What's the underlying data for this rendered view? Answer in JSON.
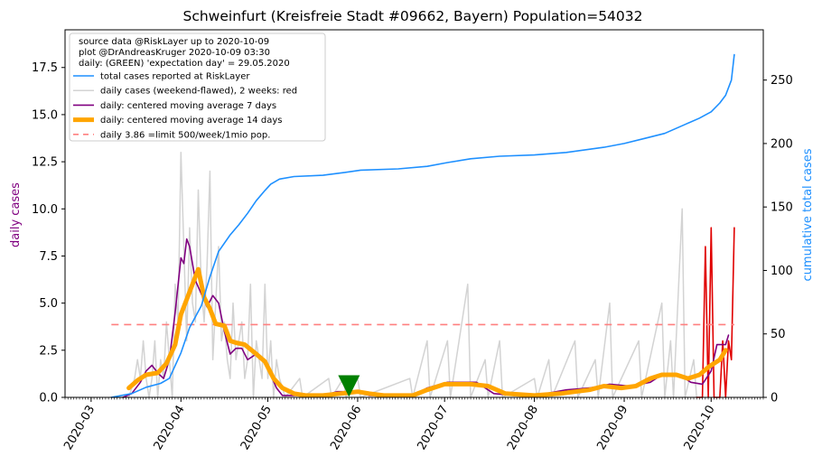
{
  "chart_data": {
    "type": "line",
    "title": "Schweinfurt (Kreisfreie Stadt #09662, Bayern) Population=54032",
    "ylabel_left": "daily cases",
    "ylabel_right": "cumulative total cases",
    "ylim_left": [
      0,
      19.5
    ],
    "ylim_right": [
      0,
      289.6
    ],
    "xlim": [
      "2020-02-21",
      "2020-10-19"
    ],
    "yticks_left": [
      "0.0",
      "2.5",
      "5.0",
      "7.5",
      "10.0",
      "12.5",
      "15.0",
      "17.5"
    ],
    "yticks_right": [
      "0",
      "50",
      "100",
      "150",
      "200",
      "250"
    ],
    "xticks": [
      "2020-03",
      "2020-04",
      "2020-05",
      "2020-06",
      "2020-07",
      "2020-08",
      "2020-09",
      "2020-10"
    ],
    "legend_position": "top-left",
    "legend_header": [
      "source data @RiskLayer up to 2020-10-09",
      "plot @DrAndreasKruger 2020-10-09 03:30",
      "daily: (GREEN) 'expectation day' = 29.05.2020"
    ],
    "colors": {
      "total": "#1e90ff",
      "daily": "#d3d3d3",
      "recent": "#e00000",
      "ma7": "#800080",
      "ma14": "#ffa500",
      "limit": "#ff8080",
      "marker": "#008000",
      "left_axis_label": "#800080",
      "right_axis_label": "#1e90ff"
    },
    "series": [
      {
        "name": "total cases reported at RiskLayer",
        "axis": "right",
        "style": "total",
        "points": [
          [
            "2020-03-08",
            0
          ],
          [
            "2020-03-15",
            3
          ],
          [
            "2020-03-20",
            8
          ],
          [
            "2020-03-25",
            11
          ],
          [
            "2020-03-28",
            15
          ],
          [
            "2020-04-01",
            35
          ],
          [
            "2020-04-04",
            55
          ],
          [
            "2020-04-08",
            72
          ],
          [
            "2020-04-11",
            95
          ],
          [
            "2020-04-14",
            115
          ],
          [
            "2020-04-18",
            128
          ],
          [
            "2020-04-21",
            136
          ],
          [
            "2020-04-24",
            145
          ],
          [
            "2020-04-27",
            155
          ],
          [
            "2020-04-30",
            163
          ],
          [
            "2020-05-02",
            168
          ],
          [
            "2020-05-05",
            172
          ],
          [
            "2020-05-10",
            174
          ],
          [
            "2020-05-20",
            175
          ],
          [
            "2020-05-27",
            177
          ],
          [
            "2020-06-02",
            179
          ],
          [
            "2020-06-15",
            180
          ],
          [
            "2020-06-25",
            182
          ],
          [
            "2020-07-02",
            185
          ],
          [
            "2020-07-10",
            188
          ],
          [
            "2020-07-20",
            190
          ],
          [
            "2020-08-01",
            191
          ],
          [
            "2020-08-12",
            193
          ],
          [
            "2020-08-25",
            197
          ],
          [
            "2020-09-01",
            200
          ],
          [
            "2020-09-08",
            204
          ],
          [
            "2020-09-15",
            208
          ],
          [
            "2020-09-22",
            215
          ],
          [
            "2020-09-27",
            220
          ],
          [
            "2020-10-01",
            225
          ],
          [
            "2020-10-04",
            232
          ],
          [
            "2020-10-06",
            238
          ],
          [
            "2020-10-08",
            250
          ],
          [
            "2020-10-09",
            270
          ]
        ]
      },
      {
        "name": "daily cases (weekend-flawed), 2 weeks: red",
        "axis": "left",
        "style": "daily",
        "points": [
          [
            "2020-03-08",
            0
          ],
          [
            "2020-03-14",
            0
          ],
          [
            "2020-03-16",
            1
          ],
          [
            "2020-03-17",
            2
          ],
          [
            "2020-03-18",
            1
          ],
          [
            "2020-03-19",
            3
          ],
          [
            "2020-03-20",
            1
          ],
          [
            "2020-03-21",
            0
          ],
          [
            "2020-03-22",
            1
          ],
          [
            "2020-03-23",
            3
          ],
          [
            "2020-03-24",
            0
          ],
          [
            "2020-03-25",
            2
          ],
          [
            "2020-03-26",
            1
          ],
          [
            "2020-03-27",
            4
          ],
          [
            "2020-03-28",
            2
          ],
          [
            "2020-03-29",
            0
          ],
          [
            "2020-03-30",
            6
          ],
          [
            "2020-03-31",
            4
          ],
          [
            "2020-04-01",
            13
          ],
          [
            "2020-04-02",
            8
          ],
          [
            "2020-04-03",
            3
          ],
          [
            "2020-04-04",
            9
          ],
          [
            "2020-04-05",
            5
          ],
          [
            "2020-04-06",
            4
          ],
          [
            "2020-04-07",
            11
          ],
          [
            "2020-04-08",
            6
          ],
          [
            "2020-04-09",
            4
          ],
          [
            "2020-04-10",
            7
          ],
          [
            "2020-04-11",
            12
          ],
          [
            "2020-04-12",
            2
          ],
          [
            "2020-04-13",
            5
          ],
          [
            "2020-04-14",
            8
          ],
          [
            "2020-04-15",
            3
          ],
          [
            "2020-04-16",
            4
          ],
          [
            "2020-04-17",
            2
          ],
          [
            "2020-04-18",
            1
          ],
          [
            "2020-04-19",
            5
          ],
          [
            "2020-04-20",
            2
          ],
          [
            "2020-04-21",
            3
          ],
          [
            "2020-04-22",
            4
          ],
          [
            "2020-04-23",
            1
          ],
          [
            "2020-04-24",
            2
          ],
          [
            "2020-04-25",
            6
          ],
          [
            "2020-04-26",
            0
          ],
          [
            "2020-04-27",
            3
          ],
          [
            "2020-04-28",
            2
          ],
          [
            "2020-04-29",
            1
          ],
          [
            "2020-04-30",
            6
          ],
          [
            "2020-05-01",
            1
          ],
          [
            "2020-05-02",
            3
          ],
          [
            "2020-05-03",
            0
          ],
          [
            "2020-05-04",
            2
          ],
          [
            "2020-05-05",
            1
          ],
          [
            "2020-05-07",
            0
          ],
          [
            "2020-05-12",
            1
          ],
          [
            "2020-05-13",
            0
          ],
          [
            "2020-05-22",
            1
          ],
          [
            "2020-05-23",
            0
          ],
          [
            "2020-05-27",
            1
          ],
          [
            "2020-05-28",
            0
          ],
          [
            "2020-06-01",
            1
          ],
          [
            "2020-06-02",
            0
          ],
          [
            "2020-06-19",
            1
          ],
          [
            "2020-06-20",
            0
          ],
          [
            "2020-06-25",
            3
          ],
          [
            "2020-06-26",
            0
          ],
          [
            "2020-07-02",
            3
          ],
          [
            "2020-07-03",
            0
          ],
          [
            "2020-07-09",
            6
          ],
          [
            "2020-07-10",
            0
          ],
          [
            "2020-07-15",
            2
          ],
          [
            "2020-07-16",
            0
          ],
          [
            "2020-07-20",
            3
          ],
          [
            "2020-07-21",
            0
          ],
          [
            "2020-08-01",
            1
          ],
          [
            "2020-08-02",
            0
          ],
          [
            "2020-08-06",
            2
          ],
          [
            "2020-08-07",
            0
          ],
          [
            "2020-08-15",
            3
          ],
          [
            "2020-08-16",
            0
          ],
          [
            "2020-08-22",
            2
          ],
          [
            "2020-08-23",
            0
          ],
          [
            "2020-08-27",
            5
          ],
          [
            "2020-08-28",
            0
          ],
          [
            "2020-09-06",
            3
          ],
          [
            "2020-09-07",
            0
          ],
          [
            "2020-09-14",
            5
          ],
          [
            "2020-09-15",
            0
          ],
          [
            "2020-09-17",
            3
          ],
          [
            "2020-09-18",
            0
          ],
          [
            "2020-09-21",
            10
          ],
          [
            "2020-09-22",
            0
          ],
          [
            "2020-09-25",
            2
          ],
          [
            "2020-09-26",
            0
          ]
        ]
      },
      {
        "name": "daily cases, last 2 weeks",
        "axis": "left",
        "style": "recent",
        "points": [
          [
            "2020-09-26",
            0
          ],
          [
            "2020-09-28",
            0
          ],
          [
            "2020-09-29",
            8
          ],
          [
            "2020-09-30",
            0
          ],
          [
            "2020-10-01",
            9
          ],
          [
            "2020-10-02",
            0
          ],
          [
            "2020-10-04",
            0
          ],
          [
            "2020-10-05",
            3
          ],
          [
            "2020-10-06",
            0
          ],
          [
            "2020-10-07",
            3
          ],
          [
            "2020-10-08",
            2
          ],
          [
            "2020-10-09",
            9
          ]
        ]
      },
      {
        "name": "daily: centered moving average 7 days",
        "axis": "left",
        "style": "ma7",
        "points": [
          [
            "2020-03-12",
            0
          ],
          [
            "2020-03-15",
            0.2
          ],
          [
            "2020-03-18",
            0.8
          ],
          [
            "2020-03-20",
            1.4
          ],
          [
            "2020-03-22",
            1.7
          ],
          [
            "2020-03-24",
            1.3
          ],
          [
            "2020-03-26",
            1.0
          ],
          [
            "2020-03-28",
            2.0
          ],
          [
            "2020-03-30",
            4.5
          ],
          [
            "2020-04-01",
            7.4
          ],
          [
            "2020-04-02",
            7.1
          ],
          [
            "2020-04-03",
            8.4
          ],
          [
            "2020-04-04",
            8.0
          ],
          [
            "2020-04-06",
            6.2
          ],
          [
            "2020-04-08",
            5.5
          ],
          [
            "2020-04-10",
            4.8
          ],
          [
            "2020-04-12",
            5.4
          ],
          [
            "2020-04-14",
            5.0
          ],
          [
            "2020-04-16",
            3.5
          ],
          [
            "2020-04-18",
            2.3
          ],
          [
            "2020-04-20",
            2.6
          ],
          [
            "2020-04-22",
            2.6
          ],
          [
            "2020-04-24",
            2.0
          ],
          [
            "2020-04-27",
            2.3
          ],
          [
            "2020-04-30",
            1.8
          ],
          [
            "2020-05-02",
            1.2
          ],
          [
            "2020-05-04",
            0.5
          ],
          [
            "2020-05-06",
            0.1
          ],
          [
            "2020-05-10",
            0.1
          ],
          [
            "2020-05-20",
            0.1
          ],
          [
            "2020-05-25",
            0.3
          ],
          [
            "2020-06-01",
            0.3
          ],
          [
            "2020-06-05",
            0.1
          ],
          [
            "2020-06-20",
            0.1
          ],
          [
            "2020-06-25",
            0.5
          ],
          [
            "2020-07-02",
            0.8
          ],
          [
            "2020-07-12",
            0.8
          ],
          [
            "2020-07-18",
            0.2
          ],
          [
            "2020-07-25",
            0.1
          ],
          [
            "2020-08-05",
            0.2
          ],
          [
            "2020-08-12",
            0.4
          ],
          [
            "2020-08-20",
            0.5
          ],
          [
            "2020-08-27",
            0.7
          ],
          [
            "2020-09-03",
            0.6
          ],
          [
            "2020-09-10",
            0.8
          ],
          [
            "2020-09-14",
            1.2
          ],
          [
            "2020-09-20",
            1.2
          ],
          [
            "2020-09-24",
            0.8
          ],
          [
            "2020-09-28",
            0.7
          ],
          [
            "2020-10-01",
            1.4
          ],
          [
            "2020-10-03",
            2.8
          ],
          [
            "2020-10-06",
            2.8
          ],
          [
            "2020-10-07",
            3.3
          ]
        ]
      },
      {
        "name": "daily: centered moving average 14 days",
        "axis": "left",
        "style": "ma14",
        "points": [
          [
            "2020-03-14",
            0.5
          ],
          [
            "2020-03-17",
            0.9
          ],
          [
            "2020-03-20",
            1.2
          ],
          [
            "2020-03-24",
            1.3
          ],
          [
            "2020-03-27",
            1.8
          ],
          [
            "2020-03-30",
            2.8
          ],
          [
            "2020-04-01",
            4.4
          ],
          [
            "2020-04-03",
            5.2
          ],
          [
            "2020-04-05",
            6.0
          ],
          [
            "2020-04-07",
            6.8
          ],
          [
            "2020-04-09",
            5.3
          ],
          [
            "2020-04-11",
            4.7
          ],
          [
            "2020-04-13",
            3.9
          ],
          [
            "2020-04-16",
            3.8
          ],
          [
            "2020-04-18",
            3.0
          ],
          [
            "2020-04-20",
            2.9
          ],
          [
            "2020-04-23",
            2.8
          ],
          [
            "2020-04-27",
            2.3
          ],
          [
            "2020-04-30",
            1.9
          ],
          [
            "2020-05-03",
            1.0
          ],
          [
            "2020-05-06",
            0.5
          ],
          [
            "2020-05-10",
            0.2
          ],
          [
            "2020-05-14",
            0.1
          ],
          [
            "2020-05-20",
            0.1
          ],
          [
            "2020-05-26",
            0.2
          ],
          [
            "2020-06-01",
            0.3
          ],
          [
            "2020-06-05",
            0.2
          ],
          [
            "2020-06-10",
            0.1
          ],
          [
            "2020-06-20",
            0.1
          ],
          [
            "2020-06-25",
            0.4
          ],
          [
            "2020-07-01",
            0.7
          ],
          [
            "2020-07-10",
            0.7
          ],
          [
            "2020-07-16",
            0.6
          ],
          [
            "2020-07-22",
            0.2
          ],
          [
            "2020-08-01",
            0.1
          ],
          [
            "2020-08-10",
            0.2
          ],
          [
            "2020-08-15",
            0.3
          ],
          [
            "2020-08-20",
            0.4
          ],
          [
            "2020-08-25",
            0.6
          ],
          [
            "2020-08-31",
            0.5
          ],
          [
            "2020-09-05",
            0.6
          ],
          [
            "2020-09-10",
            1.0
          ],
          [
            "2020-09-14",
            1.2
          ],
          [
            "2020-09-19",
            1.2
          ],
          [
            "2020-09-23",
            1.0
          ],
          [
            "2020-09-27",
            1.2
          ],
          [
            "2020-09-30",
            1.6
          ],
          [
            "2020-10-02",
            1.8
          ],
          [
            "2020-10-04",
            2.0
          ],
          [
            "2020-10-06",
            2.5
          ]
        ]
      }
    ],
    "limit_line": {
      "name": "daily 3.86 =limit 500/week/1mio pop.",
      "value": 3.86,
      "x_start": "2020-03-08",
      "x_end": "2020-10-09"
    },
    "marker": {
      "date": "2020-05-29",
      "value": 0.6
    }
  }
}
